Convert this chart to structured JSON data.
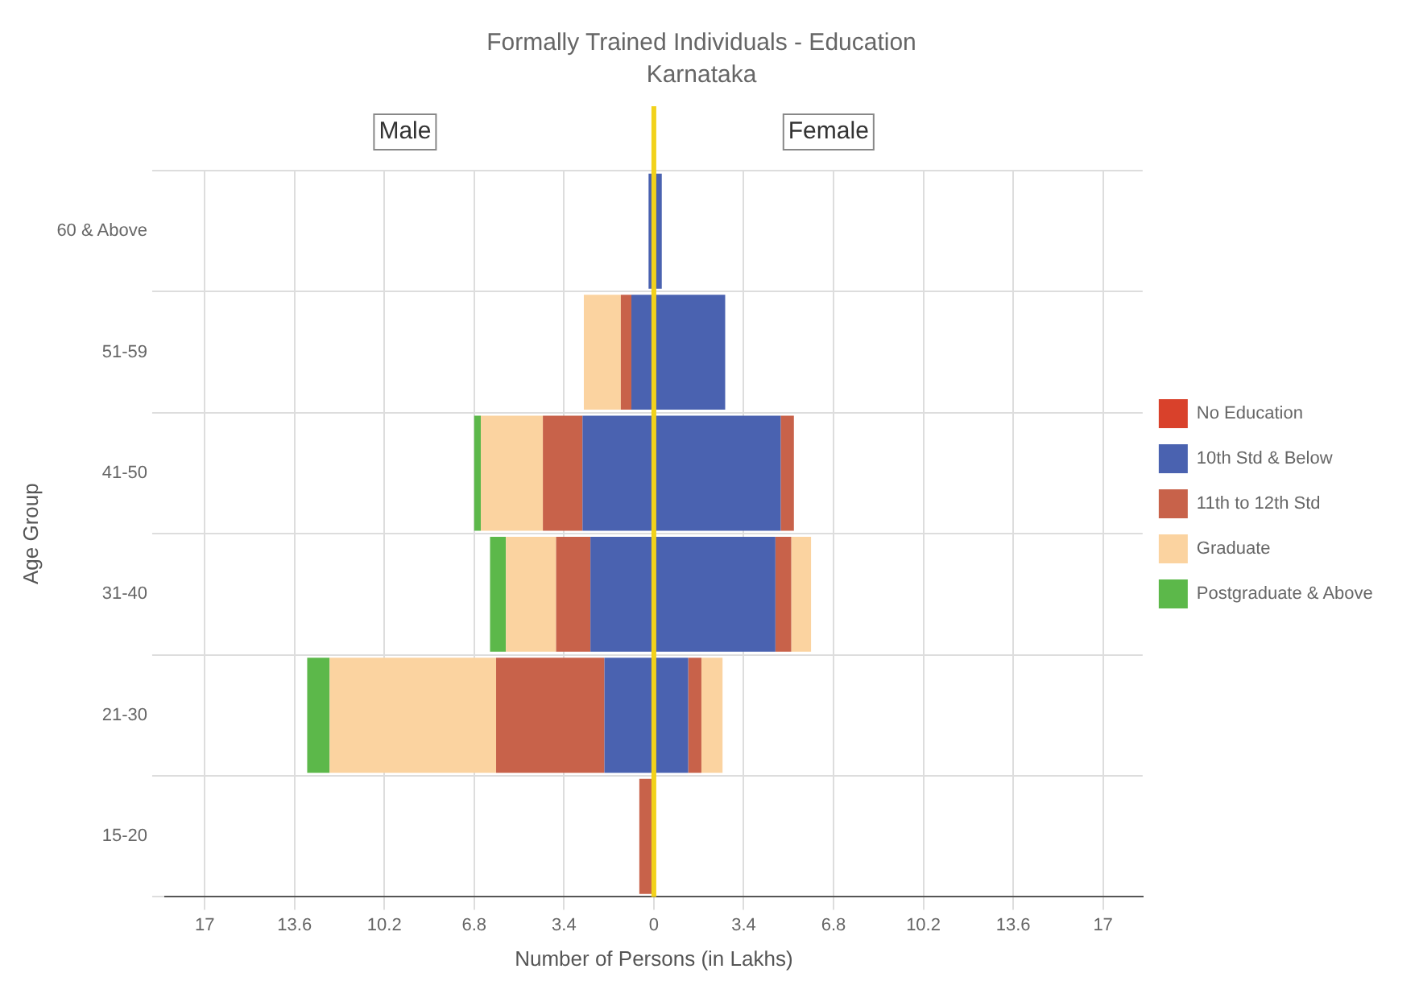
{
  "chart_data": {
    "type": "bar",
    "orientation": "horizontal",
    "stacked": true,
    "title": "Formally Trained Individuals - Education",
    "subtitle": "Karnataka",
    "xlabel": "Number of Persons (in Lakhs)",
    "ylabel": "Age Group",
    "categories": [
      "60 & Above",
      "51-59",
      "41-50",
      "31-40",
      "21-30",
      "15-20"
    ],
    "series": [
      {
        "name": "No Education",
        "color": "#d9412b",
        "values": [
          0,
          0,
          0,
          0,
          0,
          0
        ]
      },
      {
        "name": "10th Std & Below",
        "color": "#4a62b0",
        "values": [
          0.3,
          2.7,
          4.8,
          4.6,
          1.3,
          0
        ]
      },
      {
        "name": "11th to 12th Std",
        "color": "#c8624a",
        "values": [
          0,
          0,
          0.5,
          0.6,
          0.5,
          0
        ]
      },
      {
        "name": "Graduate",
        "color": "#fbd3a0",
        "values": [
          0,
          0,
          0,
          0.75,
          0.8,
          0
        ]
      },
      {
        "name": "Postgraduate & Above",
        "color": "#5cb84a",
        "values": [
          0,
          0,
          0,
          0,
          0,
          0
        ]
      },
      {
        "color": "#d9412b",
        "values": [
          0,
          0,
          0,
          0,
          0,
          0
        ]
      },
      {
        "color": "#4a62b0",
        "values": [
          -0.2,
          -0.85,
          -2.7,
          -2.4,
          -1.87,
          0
        ]
      },
      {
        "color": "#c8624a",
        "values": [
          0,
          -0.4,
          -1.5,
          -1.3,
          -4.1,
          -0.55
        ]
      },
      {
        "color": "#fbd3a0",
        "values": [
          0,
          -1.4,
          -2.35,
          -1.9,
          -6.3,
          0
        ]
      },
      {
        "color": "#5cb84a",
        "values": [
          0,
          0,
          -0.25,
          -0.6,
          -0.85,
          0
        ]
      }
    ],
    "xlim": [
      -18.5,
      18.5
    ],
    "xticks": [
      {
        "value": -17,
        "label": "17"
      },
      {
        "value": -13.6,
        "label": "13.6"
      },
      {
        "value": -10.2,
        "label": "10.2"
      },
      {
        "value": -6.8,
        "label": "6.8"
      },
      {
        "value": -3.4,
        "label": "3.4"
      },
      0,
      3.4,
      6.8,
      10.2,
      13.6,
      17
    ],
    "ref_lines": [
      {
        "axis": "x",
        "value": 0,
        "color": "#f2d21b"
      }
    ],
    "annotations": [
      "Male",
      "Female"
    ],
    "grid": true,
    "legend": "right"
  }
}
